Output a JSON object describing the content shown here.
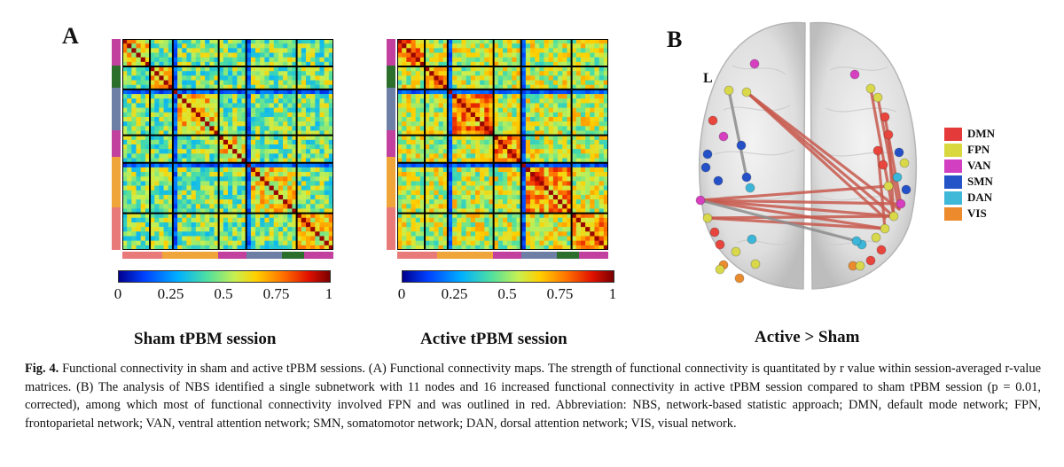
{
  "panels": {
    "a_label": "A",
    "b_label": "B",
    "sham_title": "Sham tPBM session",
    "active_title": "Active tPBM session",
    "contrast_title": "Active > Sham",
    "hemisphere_label": "L"
  },
  "colorbar": {
    "ticks": [
      "0",
      "0.25",
      "0.5",
      "0.75",
      "1"
    ],
    "tick_values": [
      0,
      0.25,
      0.5,
      0.75,
      1
    ]
  },
  "network_colors": {
    "DMN": "#e8453c",
    "FPN": "#d8d84a",
    "VAN": "#d63fbf",
    "SMN": "#2450c8",
    "DAN": "#3bb6d8",
    "VIS": "#ea8c2e"
  },
  "matrix_side_order": [
    {
      "network": "VAN",
      "color": "#c2409e"
    },
    {
      "network": "VIS_dark",
      "color": "#2c6e2c"
    },
    {
      "network": "SMN",
      "color": "#6e7fa6"
    },
    {
      "network": "VAN",
      "color": "#c2409e"
    },
    {
      "network": "VIS",
      "color": "#f0a53a"
    },
    {
      "network": "DMN",
      "color": "#e87a7a"
    }
  ],
  "matrix_bottom_order": [
    {
      "network": "DMN",
      "color": "#e87a7a"
    },
    {
      "network": "VIS",
      "color": "#f0a53a"
    },
    {
      "network": "VAN",
      "color": "#c2409e"
    },
    {
      "network": "SMN",
      "color": "#6e7fa6"
    },
    {
      "network": "VIS_dark",
      "color": "#2c6e2c"
    },
    {
      "network": "VAN",
      "color": "#c2409e"
    }
  ],
  "legend": [
    {
      "label": "DMN",
      "color": "#e53a3a"
    },
    {
      "label": "FPN",
      "color": "#d9d93f"
    },
    {
      "label": "VAN",
      "color": "#d23fc0"
    },
    {
      "label": "SMN",
      "color": "#2454c8"
    },
    {
      "label": "DAN",
      "color": "#40b8d8"
    },
    {
      "label": "VIS",
      "color": "#ec8a2c"
    }
  ],
  "caption": {
    "label": "Fig. 4.",
    "text": " Functional connectivity in sham and active tPBM sessions. (A) Functional connectivity maps. The strength of functional connectivity is quantitated by r value within session-averaged r-value matrices. (B) The analysis of NBS identified a single subnetwork with 11 nodes and 16 increased functional connectivity in active tPBM session compared to sham tPBM session (p = 0.01, corrected), among which most of functional connectivity involved FPN and was outlined in red. Abbreviation: NBS, network-based statistic approach; DMN, default mode network; FPN, frontoparietal network; VAN, ventral attention network; SMN, somatomotor network; DAN, dorsal attention network; VIS, visual network."
  }
}
